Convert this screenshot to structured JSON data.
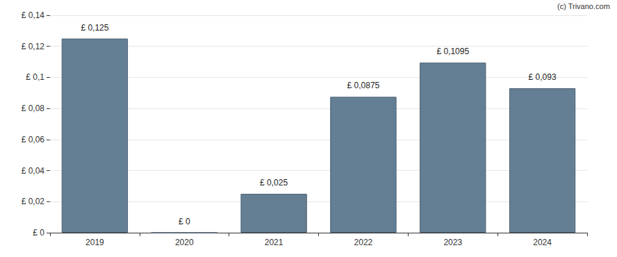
{
  "chart_data": {
    "type": "bar",
    "annotations": [
      "(c) Trivano.com"
    ],
    "categories": [
      "2019",
      "2020",
      "2021",
      "2022",
      "2023",
      "2024"
    ],
    "values": [
      0.125,
      0,
      0.025,
      0.0875,
      0.1095,
      0.093
    ],
    "value_labels": [
      "£ 0,125",
      "£ 0",
      "£ 0,025",
      "£ 0,0875",
      "£ 0,1095",
      "£ 0,093"
    ],
    "data_labels": true,
    "color": "#647f94",
    "ylim": [
      0,
      0.14
    ],
    "yticks": [
      {
        "value": 0,
        "label": "£ 0"
      },
      {
        "value": 0.02,
        "label": "£ 0,02"
      },
      {
        "value": 0.04,
        "label": "£ 0,04"
      },
      {
        "value": 0.06,
        "label": "£ 0,06"
      },
      {
        "value": 0.08,
        "label": "£ 0,08"
      },
      {
        "value": 0.1,
        "label": "£ 0,1"
      },
      {
        "value": 0.12,
        "label": "£ 0,12"
      },
      {
        "value": 0.14,
        "label": "£ 0,14"
      }
    ],
    "grid": true
  }
}
